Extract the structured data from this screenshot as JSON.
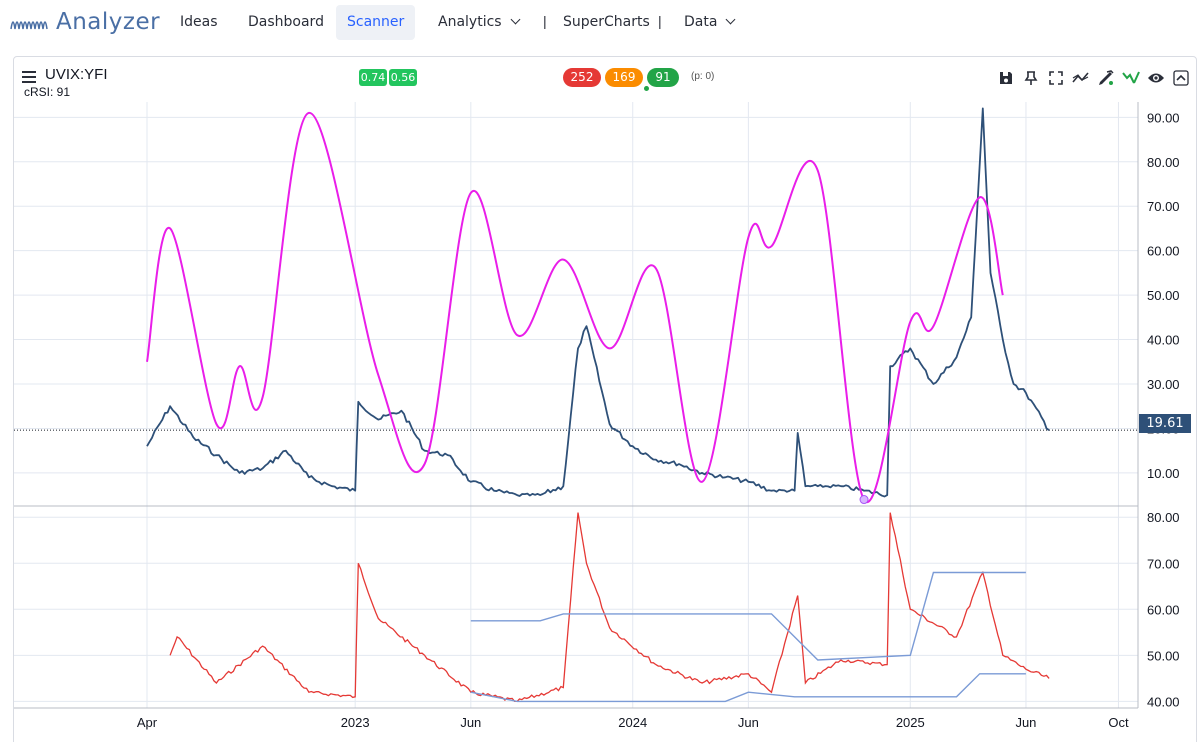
{
  "app": {
    "name": "Analyzer"
  },
  "nav": {
    "items": [
      {
        "label": "Ideas",
        "active": false
      },
      {
        "label": "Dashboard",
        "active": false
      },
      {
        "label": "Scanner",
        "active": true
      },
      {
        "label": "Analytics",
        "active": false,
        "dropdown": true
      },
      {
        "label": "SuperCharts",
        "active": false
      },
      {
        "label": "Data",
        "active": false,
        "dropdown": true
      }
    ],
    "separator": "|"
  },
  "chart_header": {
    "symbol": "UVIX:YFI",
    "indicator": "cRSI: 91",
    "badges": [
      "0.74",
      "0.56"
    ],
    "scores": [
      {
        "value": "252",
        "color": "#e53935"
      },
      {
        "value": "169",
        "color": "#fb8c00"
      },
      {
        "value": "91",
        "color": "#22a447"
      }
    ],
    "p_label": "(p: 0)"
  },
  "toolbar": {
    "icons": [
      "save-icon",
      "pin-icon",
      "fullscreen-icon",
      "trend-icon",
      "draw-icon",
      "signal-icon",
      "eye-icon",
      "chevron-up-icon"
    ]
  },
  "colors": {
    "price_line": "#2e5078",
    "cycle_line": "#e91ee9",
    "rsi_line": "#e53935",
    "band_line": "#7b9bd6",
    "grid": "#e3e8f0",
    "price_tag_bg": "#2e5078"
  },
  "chart_data": [
    {
      "type": "line",
      "title": "",
      "x_tick_labels": [
        "Apr",
        "2023",
        "Jun",
        "2024",
        "Jun",
        "2025",
        "Jun",
        "Oct"
      ],
      "y_tick_labels": [
        "10.00",
        "20.00",
        "30.00",
        "40.00",
        "50.00",
        "60.00",
        "70.00",
        "80.00",
        "90.00"
      ],
      "ylim": [
        3,
        93
      ],
      "current_price": "19.61",
      "grid": true,
      "series": [
        {
          "role": "price",
          "points": [
            [
              "2022-04",
              16
            ],
            [
              "2022-05",
              25
            ],
            [
              "2022-06",
              18
            ],
            [
              "2022-07",
              14
            ],
            [
              "2022-08",
              10
            ],
            [
              "2022-09",
              11
            ],
            [
              "2022-10",
              15
            ],
            [
              "2022-11",
              9
            ],
            [
              "2022-12",
              7
            ],
            [
              "2023-01",
              6
            ],
            [
              "2023-01-05",
              26
            ],
            [
              "2023-02",
              22
            ],
            [
              "2023-03",
              24
            ],
            [
              "2023-04",
              15
            ],
            [
              "2023-05",
              14
            ],
            [
              "2023-06",
              8
            ],
            [
              "2023-07",
              6
            ],
            [
              "2023-08",
              5
            ],
            [
              "2023-09",
              5
            ],
            [
              "2023-10",
              7
            ],
            [
              "2023-10-20",
              38
            ],
            [
              "2023-11",
              43
            ],
            [
              "2023-12",
              21
            ],
            [
              "2024-01",
              16
            ],
            [
              "2024-02",
              13
            ],
            [
              "2024-03",
              12
            ],
            [
              "2024-04",
              10
            ],
            [
              "2024-05",
              9
            ],
            [
              "2024-06",
              8
            ],
            [
              "2024-07",
              6
            ],
            [
              "2024-08",
              6
            ],
            [
              "2024-08-05",
              19
            ],
            [
              "2024-08-15",
              7
            ],
            [
              "2024-09",
              7
            ],
            [
              "2024-10",
              7
            ],
            [
              "2024-11",
              6
            ],
            [
              "2024-12",
              5
            ],
            [
              "2024-12-05",
              34
            ],
            [
              "2025-01",
              38
            ],
            [
              "2025-02",
              30
            ],
            [
              "2025-03",
              36
            ],
            [
              "2025-03-20",
              45
            ],
            [
              "2025-04-05",
              92
            ],
            [
              "2025-04-15",
              55
            ],
            [
              "2025-05",
              40
            ],
            [
              "2025-05-15",
              30
            ],
            [
              "2025-06",
              28
            ],
            [
              "2025-07",
              19.61
            ]
          ]
        },
        {
          "role": "cycle",
          "points": [
            [
              "2022-04",
              35
            ],
            [
              "2022-05",
              65
            ],
            [
              "2022-07",
              21
            ],
            [
              "2022-08",
              34
            ],
            [
              "2022-09",
              27
            ],
            [
              "2022-11",
              91
            ],
            [
              "2023-02",
              32
            ],
            [
              "2023-04",
              12
            ],
            [
              "2023-06",
              73
            ],
            [
              "2023-08",
              41
            ],
            [
              "2023-10",
              58
            ],
            [
              "2023-12",
              38
            ],
            [
              "2024-02",
              56
            ],
            [
              "2024-04",
              8
            ],
            [
              "2024-06",
              63
            ],
            [
              "2024-07",
              61
            ],
            [
              "2024-09",
              78
            ],
            [
              "2024-11",
              4
            ],
            [
              "2025-01",
              44
            ],
            [
              "2025-02",
              43
            ],
            [
              "2025-04",
              72
            ],
            [
              "2025-05",
              50
            ]
          ]
        }
      ]
    },
    {
      "type": "line",
      "title": "",
      "y_tick_labels": [
        "40.00",
        "50.00",
        "60.00",
        "70.00",
        "80.00"
      ],
      "ylim": [
        39,
        82
      ],
      "grid": true,
      "series": [
        {
          "role": "rsi",
          "points": [
            [
              "2022-05",
              50
            ],
            [
              "2022-05-10",
              54
            ],
            [
              "2022-07",
              44
            ],
            [
              "2022-09",
              52
            ],
            [
              "2022-11",
              42
            ],
            [
              "2023-01",
              41
            ],
            [
              "2023-01-05",
              70
            ],
            [
              "2023-02",
              58
            ],
            [
              "2023-04",
              50
            ],
            [
              "2023-06",
              42
            ],
            [
              "2023-08",
              40
            ],
            [
              "2023-10",
              43
            ],
            [
              "2023-10-20",
              81
            ],
            [
              "2023-11",
              70
            ],
            [
              "2023-12",
              56
            ],
            [
              "2024-02",
              48
            ],
            [
              "2024-04",
              44
            ],
            [
              "2024-06",
              46
            ],
            [
              "2024-07",
              42
            ],
            [
              "2024-08-05",
              63
            ],
            [
              "2024-08-15",
              44
            ],
            [
              "2024-10",
              49
            ],
            [
              "2024-12",
              48
            ],
            [
              "2024-12-05",
              81
            ],
            [
              "2025-01",
              60
            ],
            [
              "2025-03",
              54
            ],
            [
              "2025-04-05",
              68
            ],
            [
              "2025-05",
              50
            ],
            [
              "2025-06",
              47
            ],
            [
              "2025-07",
              45
            ]
          ]
        },
        {
          "role": "upper-band",
          "points": [
            [
              "2023-06",
              57.5
            ],
            [
              "2023-09",
              57.5
            ],
            [
              "2023-10",
              59
            ],
            [
              "2024-07",
              59
            ],
            [
              "2024-09",
              49
            ],
            [
              "2025-01",
              50
            ],
            [
              "2025-02",
              68
            ],
            [
              "2025-06",
              68
            ]
          ]
        },
        {
          "role": "lower-band",
          "points": [
            [
              "2023-06",
              42
            ],
            [
              "2023-08",
              40
            ],
            [
              "2024-05",
              40
            ],
            [
              "2024-06",
              42
            ],
            [
              "2024-08",
              41
            ],
            [
              "2025-03",
              41
            ],
            [
              "2025-04",
              46
            ],
            [
              "2025-06",
              46
            ]
          ]
        }
      ]
    }
  ]
}
